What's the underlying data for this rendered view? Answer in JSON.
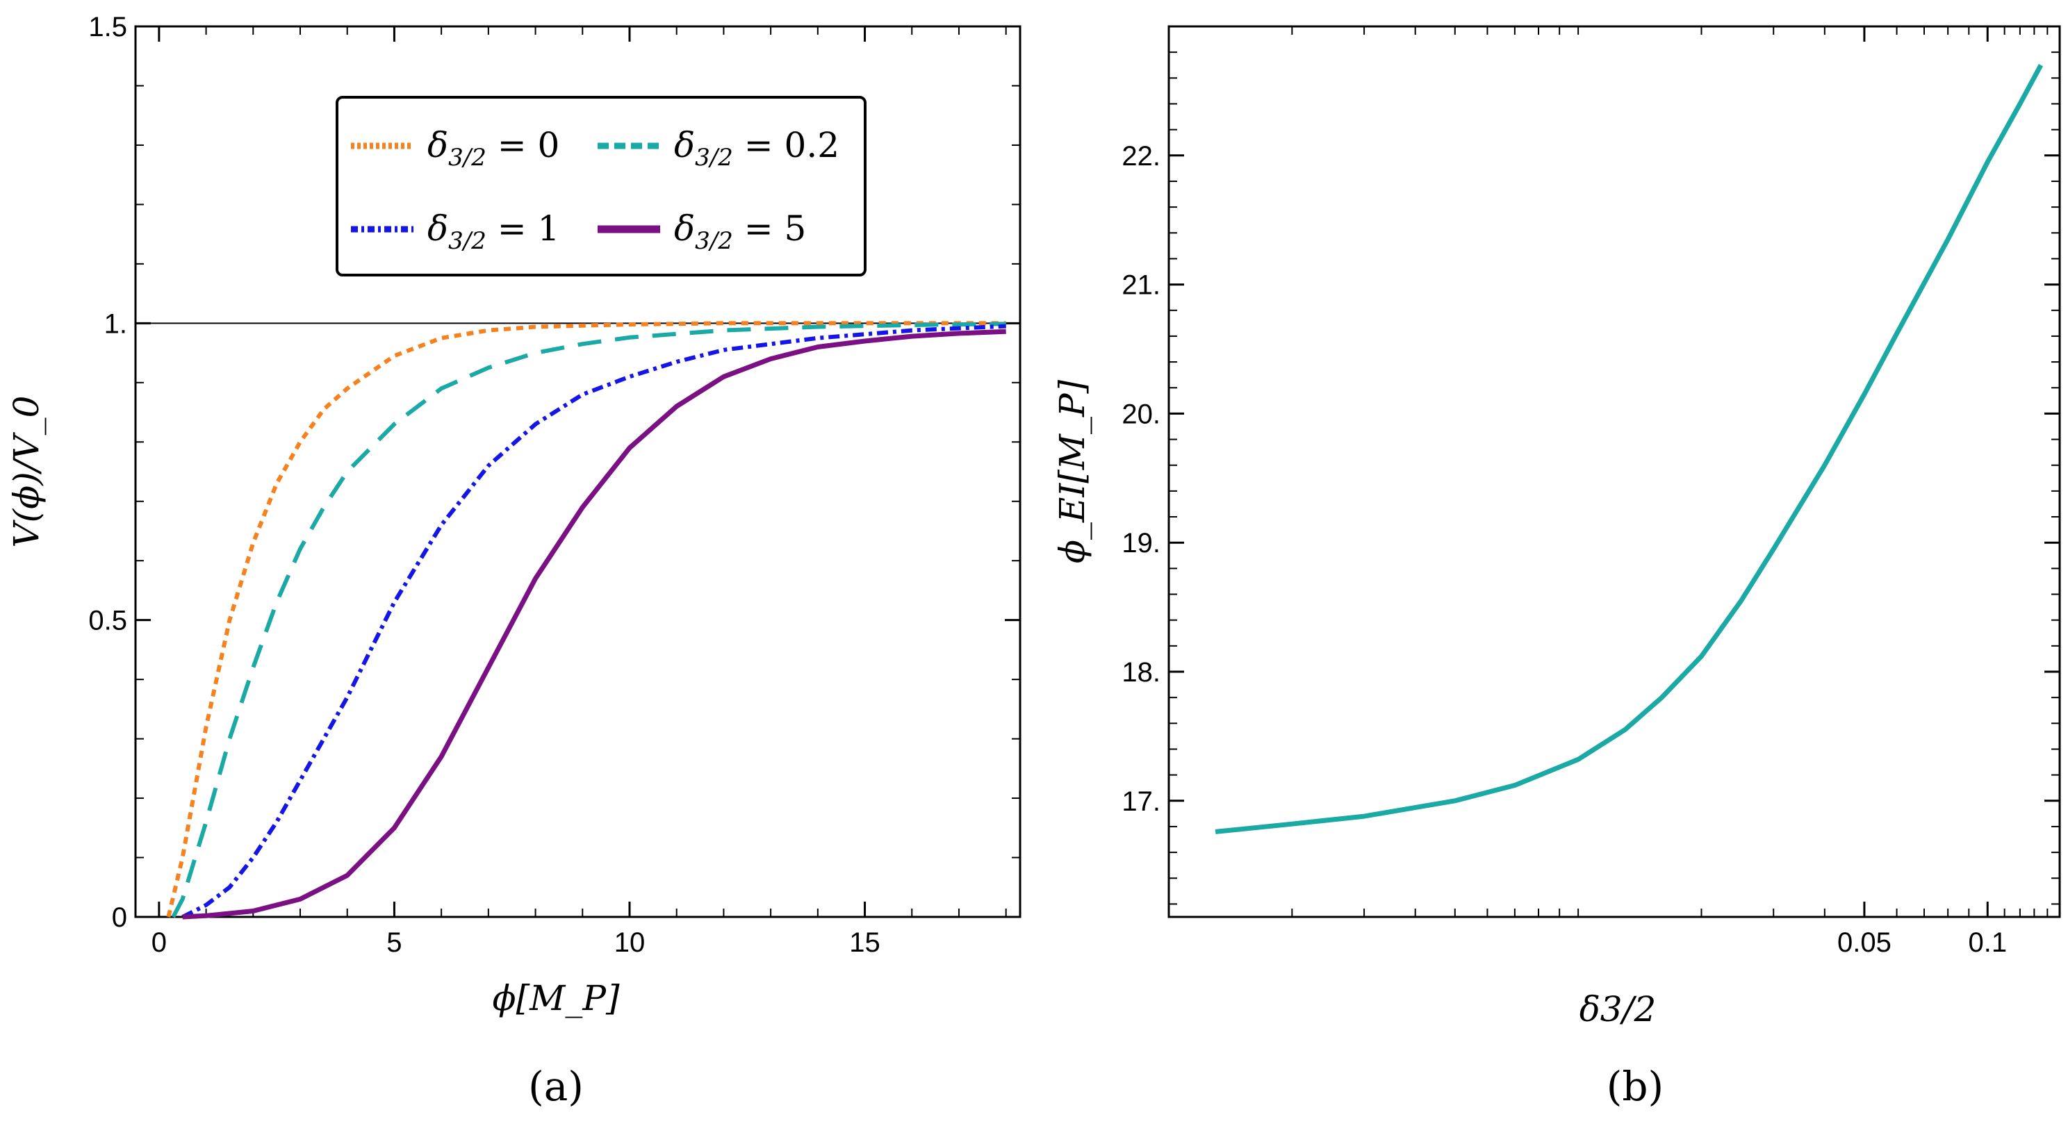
{
  "colors": {
    "orange": "#f5821f",
    "teal": "#1aa9a5",
    "blue": "#1515e8",
    "purple": "#7a1083",
    "axis": "#000000"
  },
  "panel_labels": {
    "a": "(a)",
    "b": "(b)"
  },
  "chart_data": [
    {
      "id": "a",
      "type": "line",
      "title": "",
      "xlabel": "ϕ[M_P]",
      "ylabel": "V(ϕ)/V_0",
      "xlim": [
        -0.5,
        18.3
      ],
      "ylim": [
        0,
        1.5
      ],
      "xticks": [
        0,
        5,
        10,
        15
      ],
      "xtick_labels": [
        "0",
        "5",
        "10",
        "15"
      ],
      "yticks": [
        0,
        0.5,
        1.0,
        1.5
      ],
      "ytick_labels": [
        "0",
        "0.5",
        "1.",
        "1.5"
      ],
      "legend_position": "top-right",
      "legend": [
        {
          "label": "δ3/2 = 0",
          "sub": "3/2",
          "value": "0"
        },
        {
          "label": "δ3/2 = 0.2",
          "sub": "3/2",
          "value": "0.2"
        },
        {
          "label": "δ3/2 = 1",
          "sub": "3/2",
          "value": "1"
        },
        {
          "label": "δ3/2 = 5",
          "sub": "3/2",
          "value": "5"
        }
      ],
      "series": [
        {
          "name": "δ3/2 = 0",
          "style": "dotted",
          "color": "orange",
          "x": [
            0.2,
            0.5,
            1,
            1.5,
            2,
            2.5,
            3,
            3.5,
            4,
            5,
            6,
            7,
            8,
            10,
            12,
            14,
            16,
            18
          ],
          "y": [
            0.0,
            0.1,
            0.32,
            0.5,
            0.63,
            0.73,
            0.8,
            0.855,
            0.89,
            0.945,
            0.975,
            0.988,
            0.994,
            0.998,
            1.0,
            1.0,
            1.0,
            1.0
          ]
        },
        {
          "name": "δ3/2 = 0.2",
          "style": "dashed",
          "color": "teal",
          "x": [
            0.3,
            0.5,
            1,
            1.5,
            2,
            2.5,
            3,
            3.5,
            4,
            5,
            6,
            7,
            8,
            9,
            10,
            12,
            14,
            16,
            18
          ],
          "y": [
            0.0,
            0.03,
            0.16,
            0.3,
            0.42,
            0.53,
            0.62,
            0.69,
            0.75,
            0.83,
            0.89,
            0.925,
            0.95,
            0.965,
            0.976,
            0.988,
            0.994,
            0.997,
            0.999
          ]
        },
        {
          "name": "δ3/2 = 1",
          "style": "dashdot",
          "color": "blue",
          "x": [
            0.5,
            1,
            1.5,
            2,
            2.5,
            3,
            3.5,
            4,
            5,
            6,
            7,
            8,
            9,
            10,
            11,
            12,
            14,
            16,
            18
          ],
          "y": [
            0.0,
            0.02,
            0.05,
            0.1,
            0.16,
            0.23,
            0.3,
            0.37,
            0.53,
            0.66,
            0.76,
            0.83,
            0.88,
            0.91,
            0.935,
            0.955,
            0.975,
            0.988,
            0.995
          ]
        },
        {
          "name": "δ3/2 = 5",
          "style": "solid",
          "color": "purple",
          "x": [
            0.5,
            1,
            2,
            3,
            4,
            5,
            6,
            7,
            8,
            9,
            10,
            11,
            12,
            13,
            14,
            15,
            16,
            17,
            18
          ],
          "y": [
            0.0,
            0.002,
            0.01,
            0.03,
            0.07,
            0.15,
            0.27,
            0.42,
            0.57,
            0.69,
            0.79,
            0.86,
            0.91,
            0.94,
            0.96,
            0.97,
            0.978,
            0.983,
            0.986
          ]
        }
      ]
    },
    {
      "id": "b",
      "type": "line",
      "title": "",
      "xlabel": "δ3/2",
      "ylabel": "ϕ_EI[M_P]",
      "xscale": "log",
      "xlim": [
        0.001,
        0.15
      ],
      "ylim": [
        16.1,
        23.0
      ],
      "xticks_major": [
        0.05,
        0.1
      ],
      "xtick_labels": [
        "0.05",
        "0.1"
      ],
      "xticks_minor": [
        0.002,
        0.003,
        0.004,
        0.005,
        0.006,
        0.007,
        0.008,
        0.009,
        0.01,
        0.02,
        0.03,
        0.04,
        0.06,
        0.07,
        0.08,
        0.09,
        0.11,
        0.12,
        0.13,
        0.14
      ],
      "yticks": [
        17,
        18,
        19,
        20,
        21,
        22
      ],
      "ytick_labels": [
        "17.",
        "18.",
        "19.",
        "20.",
        "21.",
        "22."
      ],
      "series": [
        {
          "name": "ϕ_EI",
          "style": "solid",
          "color": "teal",
          "x": [
            0.0013,
            0.002,
            0.003,
            0.005,
            0.007,
            0.01,
            0.013,
            0.016,
            0.02,
            0.025,
            0.03,
            0.04,
            0.05,
            0.06,
            0.08,
            0.1,
            0.12,
            0.135
          ],
          "y": [
            16.76,
            16.82,
            16.88,
            17.0,
            17.12,
            17.32,
            17.55,
            17.8,
            18.12,
            18.55,
            18.95,
            19.6,
            20.15,
            20.62,
            21.35,
            21.95,
            22.4,
            22.7
          ]
        }
      ]
    }
  ]
}
